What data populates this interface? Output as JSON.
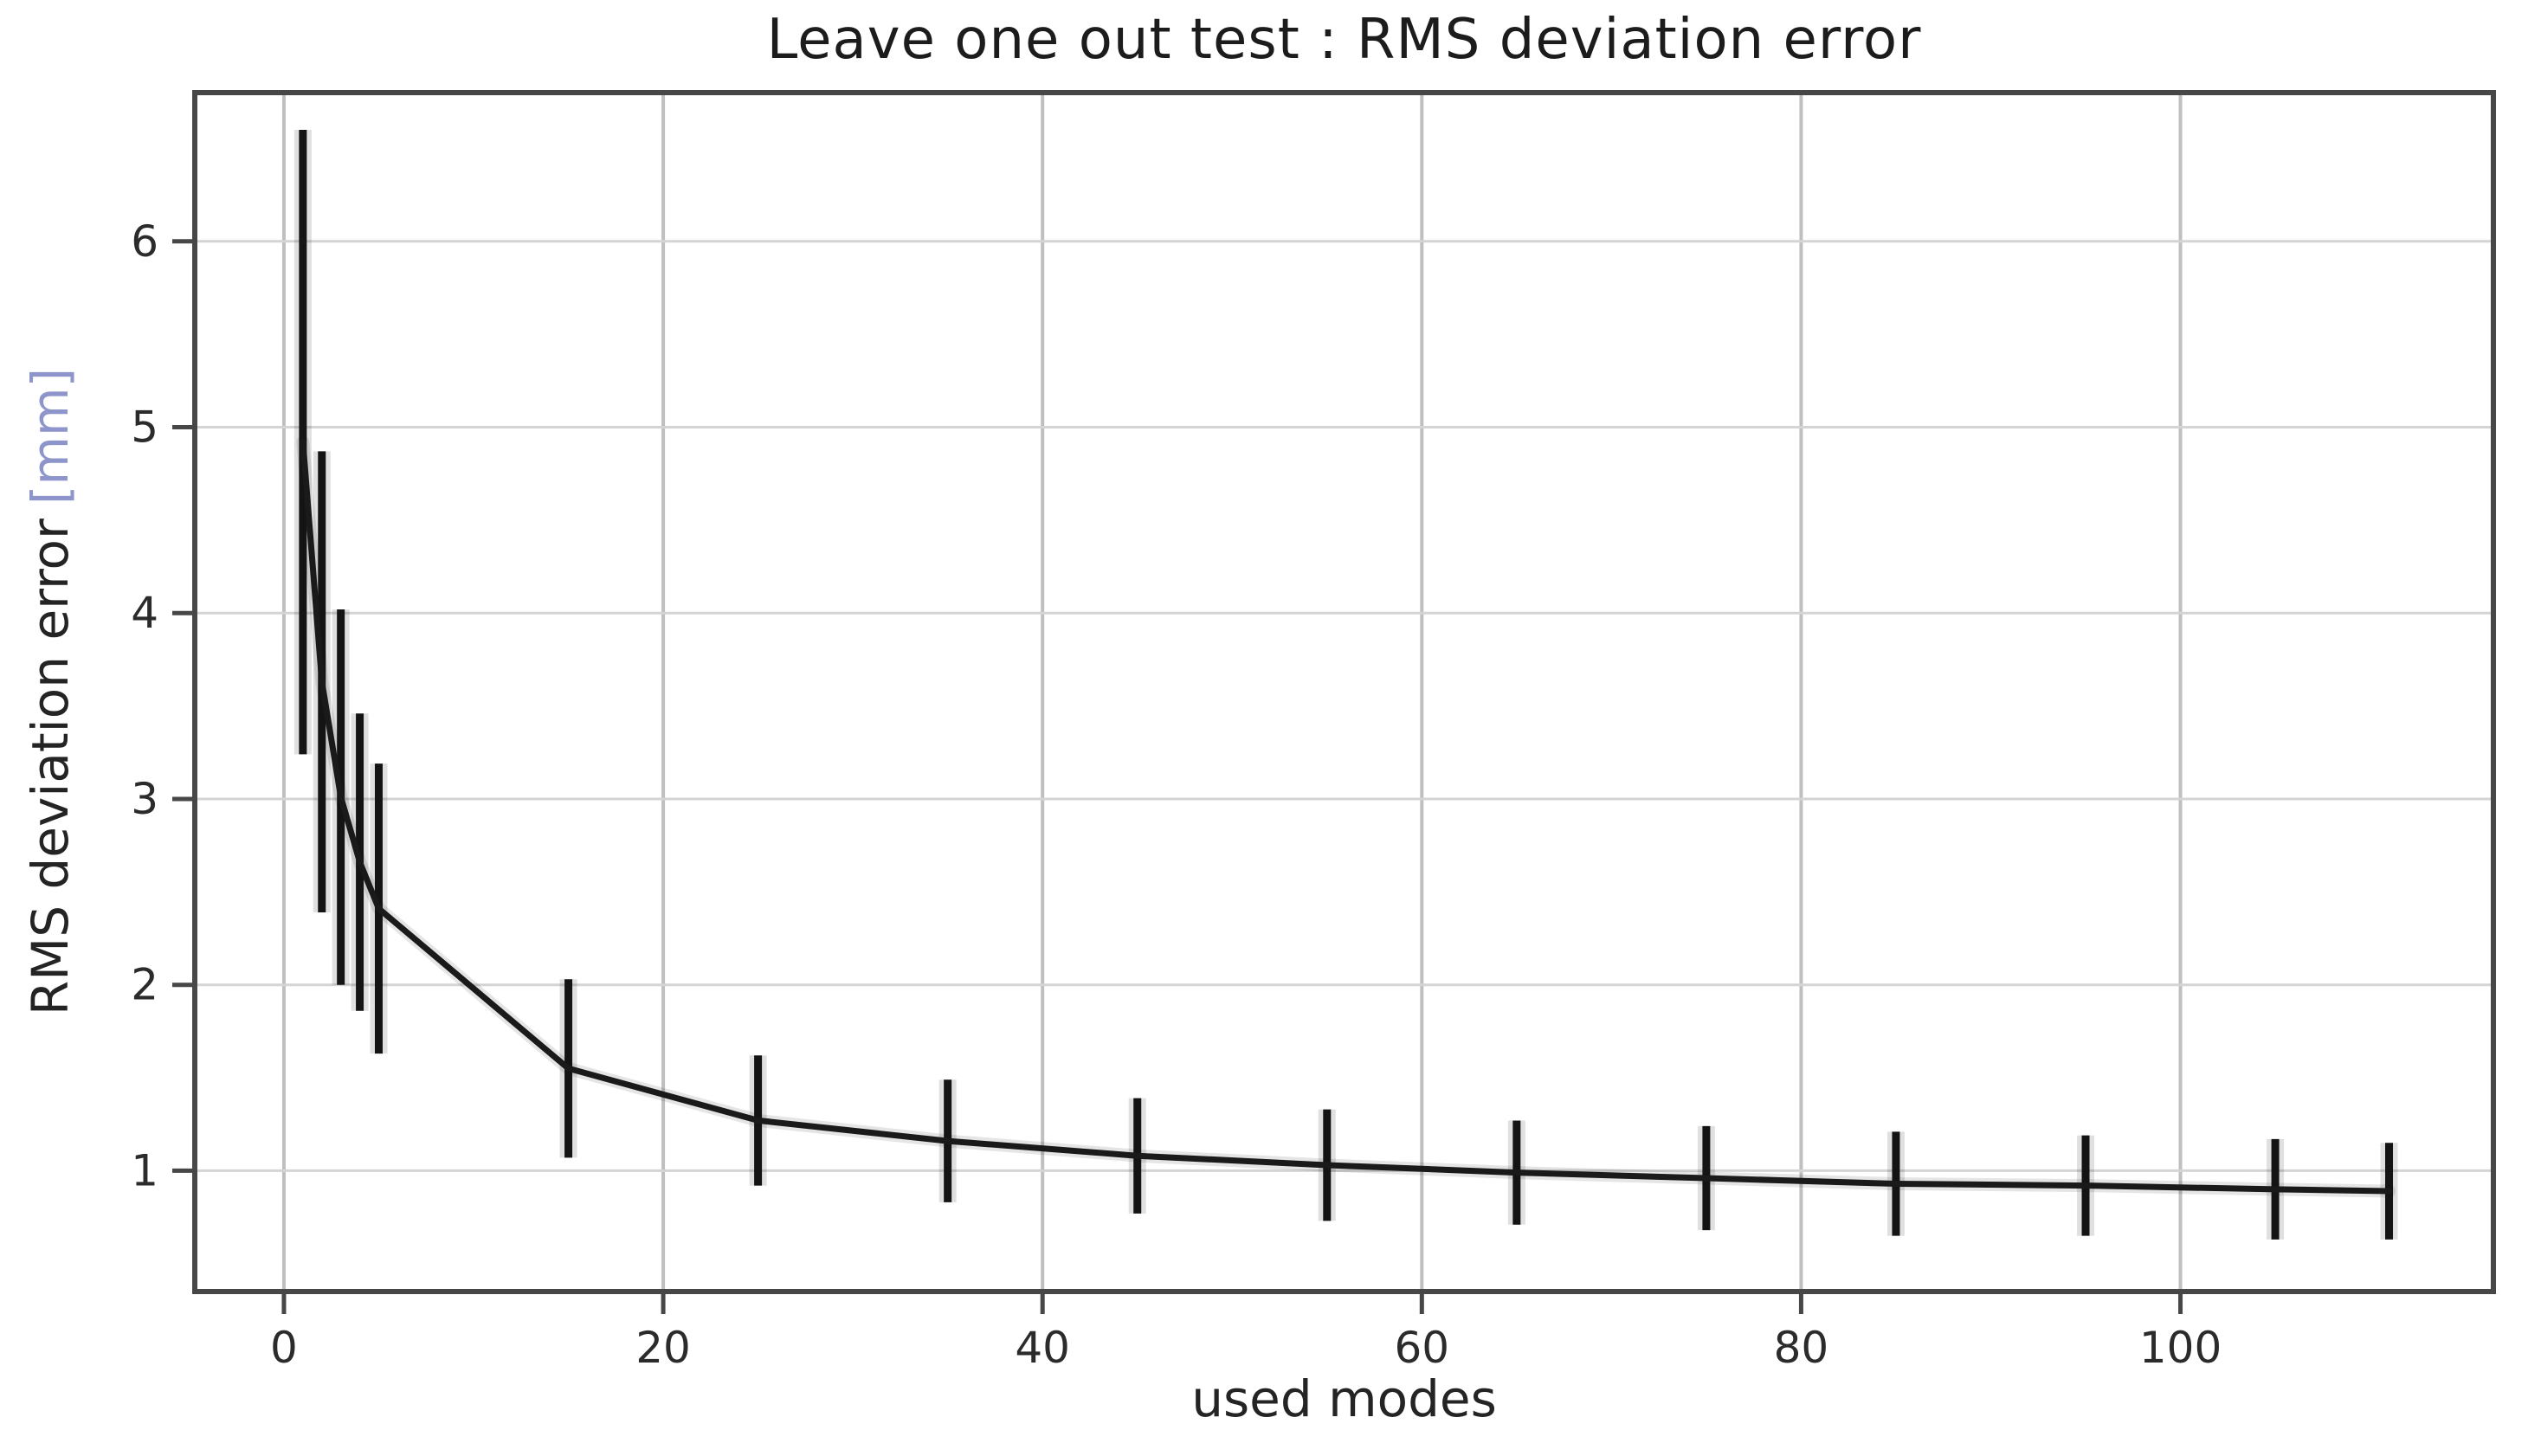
{
  "chart_data": {
    "type": "line",
    "title": "Leave one out test : RMS deviation error",
    "xlabel": "used modes",
    "ylabel": "RMS deviation error",
    "ylabel_unit": "[mm]",
    "legend": "none",
    "grid": true,
    "xlim": [
      -4.7,
      116.5
    ],
    "ylim": [
      0.35,
      6.8
    ],
    "xticks": [
      0,
      20,
      40,
      60,
      80,
      100
    ],
    "yticks": [
      1,
      2,
      3,
      4,
      5,
      6
    ],
    "series": [
      {
        "name": "RMS deviation error",
        "style": "errorbar-line",
        "x": [
          1,
          2,
          3,
          4,
          5,
          15,
          25,
          35,
          45,
          55,
          65,
          75,
          85,
          95,
          105,
          111
        ],
        "y": [
          4.92,
          3.63,
          3.01,
          2.66,
          2.41,
          1.55,
          1.27,
          1.16,
          1.08,
          1.03,
          0.99,
          0.96,
          0.93,
          0.92,
          0.9,
          0.89
        ],
        "yerr": [
          1.68,
          1.24,
          1.01,
          0.8,
          0.78,
          0.48,
          0.35,
          0.33,
          0.31,
          0.3,
          0.28,
          0.28,
          0.28,
          0.27,
          0.27,
          0.26
        ]
      }
    ],
    "colors": {
      "line": "#1a1a1a",
      "error_bar": "#141414",
      "grid_vertical": "#bfbfbf",
      "grid_horizontal": "#d4d4d4",
      "spine": "#474747",
      "tick": "#474747",
      "tick_label": "#2b2b2b",
      "title": "#1c1c1c",
      "axis_label": "#242424",
      "ylabel_unit": "#8d95cb",
      "background": "#ffffff"
    }
  }
}
